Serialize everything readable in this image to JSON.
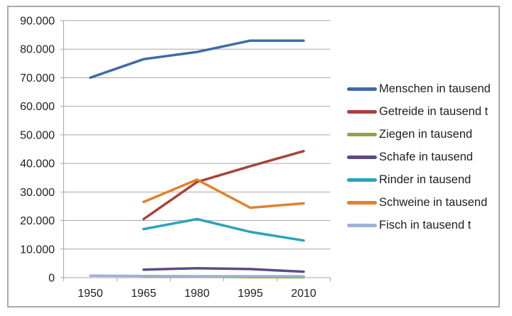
{
  "chart_data": {
    "type": "line",
    "title": "",
    "xlabel": "",
    "ylabel": "",
    "grid": true,
    "legend_position": "right",
    "ylim": [
      0,
      90000
    ],
    "x_categories": [
      "1950",
      "1965",
      "1980",
      "1995",
      "2010"
    ],
    "y_ticks": [
      {
        "value": 90000,
        "label": "90.000"
      },
      {
        "value": 80000,
        "label": "80.000"
      },
      {
        "value": 70000,
        "label": "70.000"
      },
      {
        "value": 60000,
        "label": "60.000"
      },
      {
        "value": 50000,
        "label": "50.000"
      },
      {
        "value": 40000,
        "label": "40.000"
      },
      {
        "value": 30000,
        "label": "30.000"
      },
      {
        "value": 20000,
        "label": "20.000"
      },
      {
        "value": 10000,
        "label": "10.000"
      },
      {
        "value": 0,
        "label": "0"
      }
    ],
    "series": [
      {
        "name": "Menschen in tausend",
        "color": "#3D6BA7",
        "values": [
          70000,
          76500,
          79000,
          83000,
          83000
        ]
      },
      {
        "name": "Getreide in tausend t",
        "color": "#A8423C",
        "values": [
          null,
          20500,
          33500,
          39000,
          44300
        ]
      },
      {
        "name": "Ziegen in tausend",
        "color": "#8CA444",
        "values": [
          null,
          300,
          400,
          200,
          150
        ]
      },
      {
        "name": "Schafe in tausend",
        "color": "#5D4A87",
        "values": [
          null,
          2800,
          3300,
          3000,
          2100
        ]
      },
      {
        "name": "Rinder in tausend",
        "color": "#2CA3B8",
        "values": [
          null,
          17000,
          20500,
          16000,
          13000
        ]
      },
      {
        "name": "Schweine in tausend",
        "color": "#E1812B",
        "values": [
          null,
          26500,
          34300,
          24500,
          26000
        ]
      },
      {
        "name": "Fisch in tausend t",
        "color": "#9FB1D5",
        "values": [
          700,
          600,
          500,
          500,
          500
        ]
      }
    ],
    "axis_color": "#a6a6a6",
    "gridline_color": "#a6a6a6",
    "frame_color": "#a9a9a9",
    "label_color": "#1f1f1f"
  }
}
